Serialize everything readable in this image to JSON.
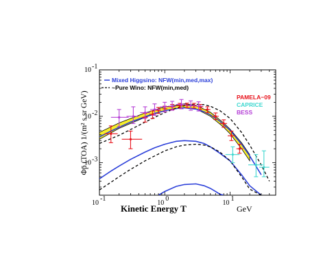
{
  "chart_data": {
    "type": "line",
    "xscale": "log",
    "yscale": "log",
    "xlim": [
      0.1,
      50
    ],
    "ylim": [
      0.0002,
      0.1
    ],
    "xlabel_main": "Kinetic Energy  T",
    "xlabel_unit": "GeV",
    "ylabel": "Φp̄ (TOA)  1/(m² s sr GeV)",
    "x_ticks": [
      {
        "value": 0.1,
        "base": "10",
        "exp": "-1"
      },
      {
        "value": 1,
        "base": "10",
        "exp": "0"
      },
      {
        "value": 10,
        "base": "10",
        "exp": "1"
      }
    ],
    "y_ticks": [
      {
        "value": 0.001,
        "base": "10",
        "exp": "-3"
      },
      {
        "value": 0.01,
        "base": "10",
        "exp": "-2"
      },
      {
        "value": 0.1,
        "base": "10",
        "exp": "-1"
      }
    ],
    "legend": [
      {
        "style": "solid",
        "color": "#2b3fd9",
        "label": "Mixed Higgsino: NFW(min,med,max)"
      },
      {
        "style": "dashed",
        "color": "#000000",
        "label": "~Pure Wino: NFW(min,med)"
      }
    ],
    "experiments": [
      {
        "name": "PAMELA−09",
        "color": "#e8121b"
      },
      {
        "name": "CAPRICE",
        "color": "#3fd8d0"
      },
      {
        "name": "BESS",
        "color": "#b43ed6"
      }
    ],
    "band": {
      "color": "#f5ee2a",
      "x": [
        0.1,
        0.2,
        0.5,
        1.0,
        2.0,
        3.0,
        5.0,
        8.0,
        10.0,
        15.0,
        20.0
      ],
      "lower": [
        0.0032,
        0.0055,
        0.0095,
        0.0132,
        0.0155,
        0.0145,
        0.01,
        0.0058,
        0.0042,
        0.002,
        0.0011
      ],
      "upper": [
        0.0045,
        0.0072,
        0.0118,
        0.016,
        0.0185,
        0.0172,
        0.0122,
        0.0072,
        0.0053,
        0.0027,
        0.0015
      ]
    },
    "series": [
      {
        "style": "solid",
        "color": "#2b3fd9",
        "x": [
          0.1,
          0.15,
          0.2,
          0.3,
          0.5,
          0.7,
          1.0,
          1.5,
          2.0,
          3.0,
          4.0,
          5.0,
          7.0,
          10.0,
          15.0,
          20.0,
          30.0
        ],
        "y": [
          0.0036,
          0.0048,
          0.0058,
          0.0075,
          0.0098,
          0.0115,
          0.0132,
          0.0147,
          0.0152,
          0.0143,
          0.0125,
          0.0107,
          0.0078,
          0.005,
          0.0025,
          0.0014,
          0.00055
        ]
      },
      {
        "style": "solid",
        "color": "#2b3fd9",
        "x": [
          0.1,
          0.15,
          0.2,
          0.3,
          0.5,
          0.7,
          1.0,
          1.5,
          2.0,
          3.0,
          4.0,
          5.0,
          7.0,
          10.0,
          15.0,
          20.0,
          30.0
        ],
        "y": [
          0.00045,
          0.00066,
          0.00085,
          0.00118,
          0.0017,
          0.0021,
          0.0025,
          0.0029,
          0.003,
          0.0029,
          0.0026,
          0.0022,
          0.0016,
          0.0011,
          0.00055,
          0.00032,
          0.0002
        ]
      },
      {
        "style": "solid",
        "color": "#2b3fd9",
        "x": [
          0.8,
          1.0,
          1.5,
          2.0,
          3.0,
          4.0,
          5.0,
          6.0,
          7.0,
          8.0
        ],
        "y": [
          0.0002,
          0.00024,
          0.00031,
          0.00034,
          0.00035,
          0.00032,
          0.00028,
          0.00024,
          0.00021,
          0.0002
        ]
      },
      {
        "style": "dashed",
        "color": "#000000",
        "x": [
          0.1,
          0.15,
          0.2,
          0.3,
          0.5,
          0.7,
          1.0,
          1.5,
          2.0,
          3.0,
          4.0,
          5.0,
          7.0,
          10.0,
          15.0,
          20.0,
          30.0,
          40.0
        ],
        "y": [
          0.0026,
          0.0033,
          0.0039,
          0.0052,
          0.0075,
          0.0095,
          0.012,
          0.015,
          0.017,
          0.0182,
          0.0178,
          0.0165,
          0.0132,
          0.009,
          0.0045,
          0.0024,
          0.0009,
          0.0004
        ]
      },
      {
        "style": "dashed",
        "color": "#000000",
        "x": [
          0.1,
          0.15,
          0.2,
          0.3,
          0.5,
          0.7,
          1.0,
          1.5,
          2.0,
          3.0,
          4.0,
          5.0,
          7.0,
          10.0,
          15.0,
          20.0,
          30.0
        ],
        "y": [
          0.00026,
          0.00038,
          0.0005,
          0.00072,
          0.0011,
          0.0014,
          0.0018,
          0.0022,
          0.0024,
          0.0025,
          0.0024,
          0.0022,
          0.0017,
          0.0011,
          0.0005,
          0.00027,
          0.0002
        ]
      }
    ],
    "data_points": {
      "PAMELA": {
        "color": "#e8121b",
        "points": [
          {
            "x": 0.15,
            "y": 0.0042,
            "xlo": 0.12,
            "xhi": 0.19,
            "ylo": 0.0027,
            "yhi": 0.0062
          },
          {
            "x": 0.3,
            "y": 0.0032,
            "xlo": 0.22,
            "xhi": 0.45,
            "ylo": 0.002,
            "yhi": 0.0048
          },
          {
            "x": 0.5,
            "y": 0.0095,
            "xlo": 0.45,
            "xhi": 0.55,
            "ylo": 0.0075,
            "yhi": 0.0115
          },
          {
            "x": 0.65,
            "y": 0.011,
            "xlo": 0.58,
            "xhi": 0.72,
            "ylo": 0.009,
            "yhi": 0.013
          },
          {
            "x": 0.8,
            "y": 0.0135,
            "xlo": 0.72,
            "xhi": 0.88,
            "ylo": 0.0115,
            "yhi": 0.0155
          },
          {
            "x": 1.0,
            "y": 0.0145,
            "xlo": 0.92,
            "xhi": 1.1,
            "ylo": 0.0125,
            "yhi": 0.0165
          },
          {
            "x": 1.3,
            "y": 0.016,
            "xlo": 1.15,
            "xhi": 1.45,
            "ylo": 0.014,
            "yhi": 0.018
          },
          {
            "x": 1.7,
            "y": 0.017,
            "xlo": 1.5,
            "xhi": 1.9,
            "ylo": 0.015,
            "yhi": 0.019
          },
          {
            "x": 2.2,
            "y": 0.0172,
            "xlo": 2.0,
            "xhi": 2.45,
            "ylo": 0.0152,
            "yhi": 0.0192
          },
          {
            "x": 2.8,
            "y": 0.017,
            "xlo": 2.5,
            "xhi": 3.1,
            "ylo": 0.015,
            "yhi": 0.019
          },
          {
            "x": 3.5,
            "y": 0.016,
            "xlo": 3.2,
            "xhi": 3.9,
            "ylo": 0.014,
            "yhi": 0.018
          },
          {
            "x": 4.5,
            "y": 0.014,
            "xlo": 4.0,
            "xhi": 5.0,
            "ylo": 0.012,
            "yhi": 0.016
          },
          {
            "x": 6.0,
            "y": 0.01,
            "xlo": 5.3,
            "xhi": 6.7,
            "ylo": 0.0085,
            "yhi": 0.0118
          },
          {
            "x": 8.0,
            "y": 0.007,
            "xlo": 7.0,
            "xhi": 9.0,
            "ylo": 0.0058,
            "yhi": 0.0084
          },
          {
            "x": 10.5,
            "y": 0.0038,
            "xlo": 9.2,
            "xhi": 12.0,
            "ylo": 0.003,
            "yhi": 0.0048
          },
          {
            "x": 14.0,
            "y": 0.002,
            "xlo": 12.5,
            "xhi": 16.0,
            "ylo": 0.0016,
            "yhi": 0.0025
          }
        ]
      },
      "CAPRICE": {
        "color": "#3fd8d0",
        "points": [
          {
            "x": 11.0,
            "y": 0.0015,
            "xlo": 8.5,
            "xhi": 14.0,
            "ylo": 0.001,
            "yhi": 0.0022
          },
          {
            "x": 25.0,
            "y": 0.0009,
            "xlo": 19.0,
            "xhi": 32.0,
            "ylo": 0.0005,
            "yhi": 0.0015
          },
          {
            "x": 33.0,
            "y": 0.0008,
            "xlo": 28.0,
            "xhi": 40.0,
            "ylo": 0.0005,
            "yhi": 0.0018
          }
        ]
      },
      "BESS": {
        "color": "#b43ed6",
        "points": [
          {
            "x": 0.2,
            "y": 0.0095,
            "xlo": 0.15,
            "xhi": 0.28,
            "ylo": 0.006,
            "yhi": 0.014
          },
          {
            "x": 0.33,
            "y": 0.01,
            "xlo": 0.26,
            "xhi": 0.4,
            "ylo": 0.007,
            "yhi": 0.016
          },
          {
            "x": 0.5,
            "y": 0.012,
            "xlo": 0.42,
            "xhi": 0.6,
            "ylo": 0.009,
            "yhi": 0.016
          },
          {
            "x": 0.7,
            "y": 0.014,
            "xlo": 0.6,
            "xhi": 0.85,
            "ylo": 0.0105,
            "yhi": 0.0185
          },
          {
            "x": 1.0,
            "y": 0.016,
            "xlo": 0.85,
            "xhi": 1.15,
            "ylo": 0.0125,
            "yhi": 0.02
          },
          {
            "x": 1.3,
            "y": 0.0165,
            "xlo": 1.15,
            "xhi": 1.5,
            "ylo": 0.0135,
            "yhi": 0.021
          },
          {
            "x": 1.8,
            "y": 0.018,
            "xlo": 1.5,
            "xhi": 2.1,
            "ylo": 0.0145,
            "yhi": 0.023
          },
          {
            "x": 2.5,
            "y": 0.017,
            "xlo": 2.1,
            "xhi": 2.9,
            "ylo": 0.0135,
            "yhi": 0.0215
          },
          {
            "x": 3.3,
            "y": 0.0165,
            "xlo": 2.9,
            "xhi": 3.8,
            "ylo": 0.013,
            "yhi": 0.0205
          }
        ]
      }
    }
  }
}
